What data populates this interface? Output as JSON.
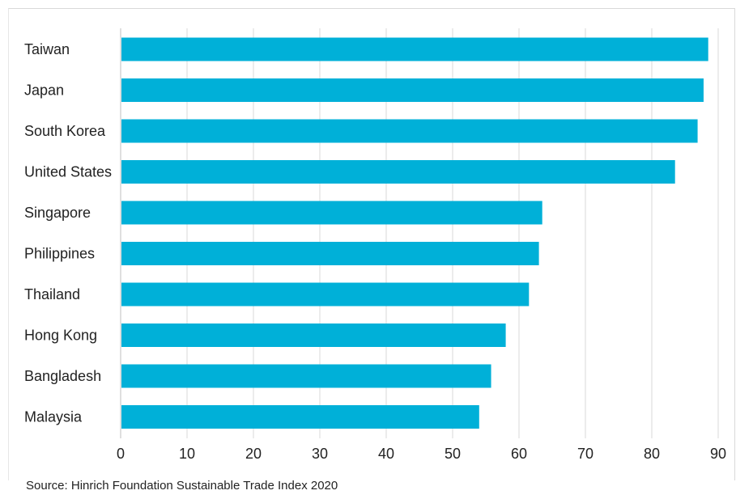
{
  "chart_data": {
    "type": "bar",
    "orientation": "horizontal",
    "categories": [
      "Taiwan",
      "Japan",
      "South Korea",
      "United States",
      "Singapore",
      "Philippines",
      "Thailand",
      "Hong Kong",
      "Bangladesh",
      "Malaysia"
    ],
    "values": [
      88.5,
      87.8,
      86.9,
      83.5,
      63.5,
      63.0,
      61.5,
      58.0,
      55.8,
      54.0
    ],
    "xlim": [
      0,
      90
    ],
    "xticks": [
      "0",
      "10",
      "20",
      "30",
      "40",
      "50",
      "60",
      "70",
      "80",
      "90"
    ],
    "title": "",
    "xlabel": "",
    "ylabel": "",
    "grid": "vertical",
    "legend": "none",
    "bar_color": "#00b0d8"
  },
  "footer": {
    "source": "Source: Hinrich Foundation Sustainable Trade Index 2020"
  }
}
